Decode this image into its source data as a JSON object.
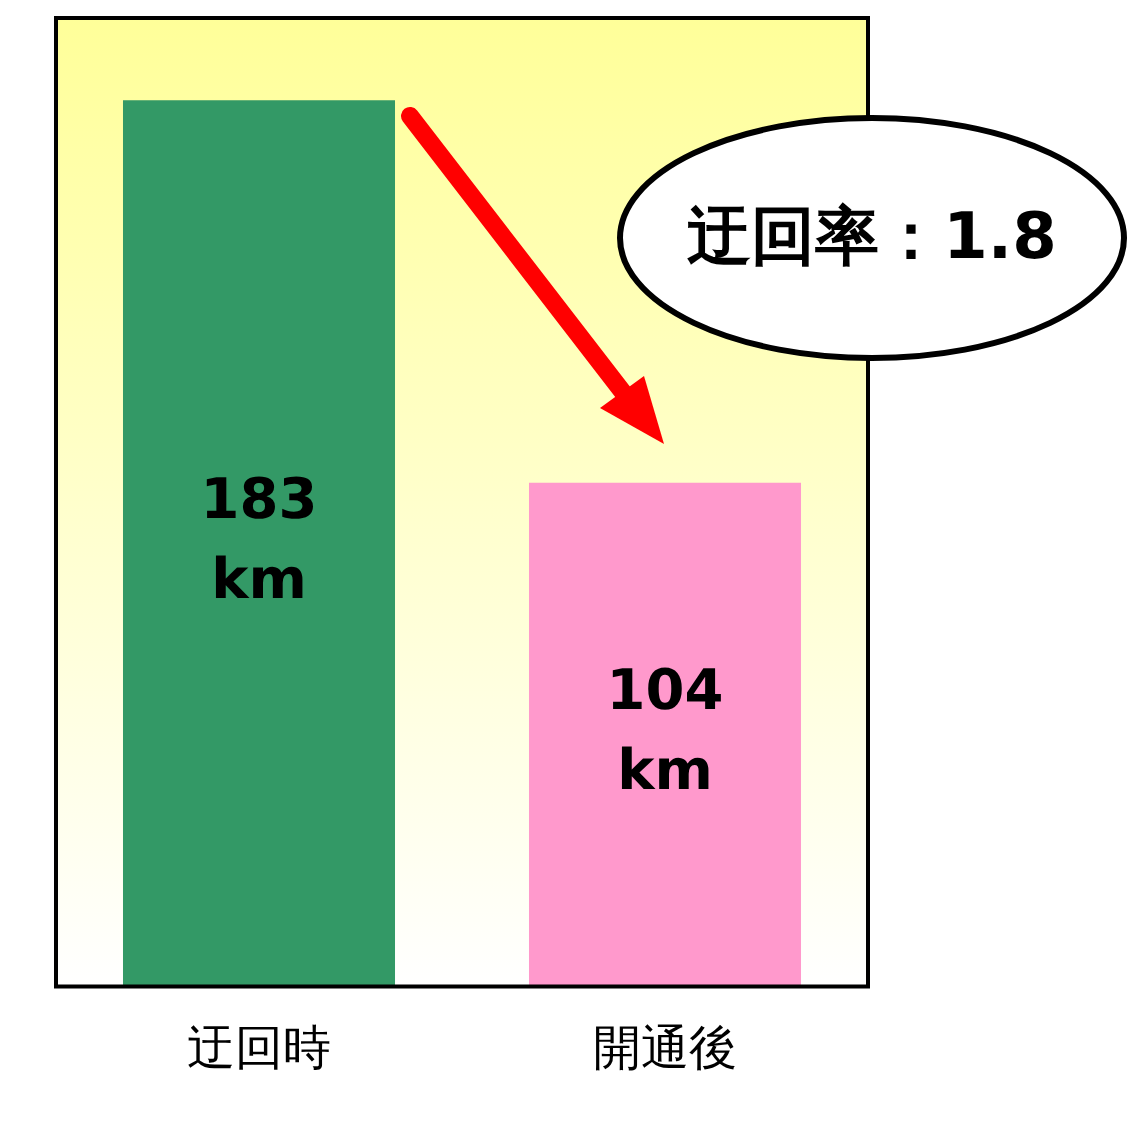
{
  "chart_data": {
    "type": "bar",
    "categories": [
      "迂回時",
      "開通後"
    ],
    "values": [
      183,
      104
    ],
    "colors": [
      "#339966",
      "#ff99cc"
    ],
    "ylim": [
      0,
      200
    ],
    "value_labels": [
      "183\nkm",
      "104\nkm"
    ],
    "annotations": [
      "迂回率：1.8"
    ],
    "grid": false,
    "legend": false,
    "tick_labels": "x"
  }
}
